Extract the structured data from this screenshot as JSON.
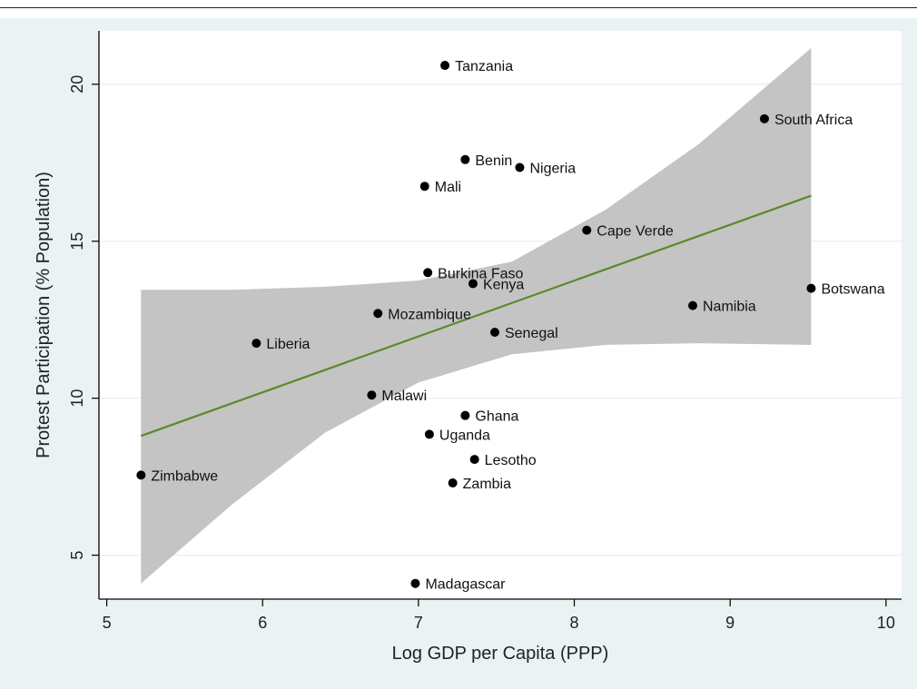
{
  "chart_data": {
    "type": "scatter",
    "xlabel": "Log GDP per Capita (PPP)",
    "ylabel": "Protest Participation (% Population)",
    "xlim": [
      4.95,
      10.1
    ],
    "ylim": [
      3.6,
      21.7
    ],
    "xticks": [
      5,
      6,
      7,
      8,
      9,
      10
    ],
    "yticks": [
      5,
      10,
      15,
      20
    ],
    "grid": true,
    "colors": {
      "background": "#eaf2f3",
      "plot_area": "#ffffff",
      "gridline": "#eaf2f3",
      "confidence_band": "#c4c4c4",
      "fit_line": "#5a8a2c",
      "points": "#000000"
    },
    "points": [
      {
        "label": "Tanzania",
        "x": 7.17,
        "y": 20.6
      },
      {
        "label": "South Africa",
        "x": 9.22,
        "y": 18.9
      },
      {
        "label": "Benin",
        "x": 7.3,
        "y": 17.6
      },
      {
        "label": "Nigeria",
        "x": 7.65,
        "y": 17.35
      },
      {
        "label": "Mali",
        "x": 7.04,
        "y": 16.75
      },
      {
        "label": "Cape Verde",
        "x": 8.08,
        "y": 15.35
      },
      {
        "label": "Burkina Faso",
        "x": 7.06,
        "y": 14.0
      },
      {
        "label": "Kenya",
        "x": 7.35,
        "y": 13.65
      },
      {
        "label": "Botswana",
        "x": 9.52,
        "y": 13.5
      },
      {
        "label": "Namibia",
        "x": 8.76,
        "y": 12.95
      },
      {
        "label": "Mozambique",
        "x": 6.74,
        "y": 12.7
      },
      {
        "label": "Senegal",
        "x": 7.49,
        "y": 12.1
      },
      {
        "label": "Liberia",
        "x": 5.96,
        "y": 11.75
      },
      {
        "label": "Malawi",
        "x": 6.7,
        "y": 10.1
      },
      {
        "label": "Ghana",
        "x": 7.3,
        "y": 9.45
      },
      {
        "label": "Uganda",
        "x": 7.07,
        "y": 8.85
      },
      {
        "label": "Lesotho",
        "x": 7.36,
        "y": 8.05
      },
      {
        "label": "Zimbabwe",
        "x": 5.22,
        "y": 7.55
      },
      {
        "label": "Zambia",
        "x": 7.22,
        "y": 7.3
      },
      {
        "label": "Madagascar",
        "x": 6.98,
        "y": 4.1
      }
    ],
    "fit_line": {
      "x": [
        5.22,
        9.52
      ],
      "y": [
        8.8,
        16.45
      ]
    },
    "confidence_band": {
      "x": [
        5.22,
        5.8,
        6.4,
        7.0,
        7.6,
        8.2,
        8.8,
        9.52
      ],
      "upper": [
        13.45,
        13.45,
        13.55,
        13.75,
        14.35,
        16.0,
        18.1,
        21.15
      ],
      "lower": [
        4.1,
        6.6,
        8.9,
        10.5,
        11.4,
        11.7,
        11.75,
        11.7
      ]
    }
  }
}
